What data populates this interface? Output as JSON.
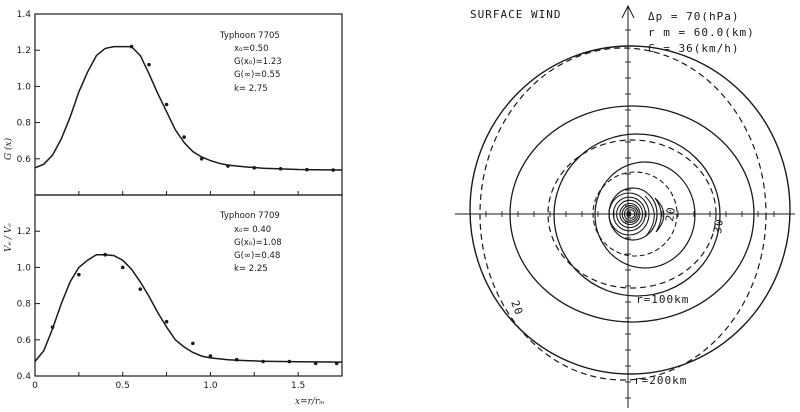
{
  "chart_data": [
    {
      "type": "line",
      "panel": "top",
      "title": "Typhoon 7705",
      "annotations": [
        "x₀=0.50",
        "G(x₀)=1.23",
        "G(∞)=0.55",
        "k= 2.75"
      ],
      "ylabel": "G (x)",
      "xlim": [
        0,
        1.75
      ],
      "ylim": [
        0.4,
        1.4
      ],
      "yticks": [
        "0.6",
        "0.8",
        "1.0",
        "1.2",
        "1.4"
      ],
      "curve": {
        "x": [
          0,
          0.05,
          0.1,
          0.15,
          0.2,
          0.25,
          0.3,
          0.35,
          0.4,
          0.45,
          0.5,
          0.55,
          0.6,
          0.65,
          0.7,
          0.75,
          0.8,
          0.85,
          0.9,
          0.95,
          1.0,
          1.05,
          1.1,
          1.2,
          1.3,
          1.4,
          1.5,
          1.6,
          1.75
        ],
        "y": [
          0.55,
          0.57,
          0.62,
          0.71,
          0.83,
          0.97,
          1.08,
          1.17,
          1.21,
          1.22,
          1.22,
          1.22,
          1.17,
          1.07,
          0.96,
          0.86,
          0.76,
          0.69,
          0.64,
          0.61,
          0.59,
          0.575,
          0.565,
          0.555,
          0.548,
          0.544,
          0.541,
          0.54,
          0.538
        ]
      },
      "points": {
        "x": [
          0.55,
          0.65,
          0.75,
          0.85,
          0.95,
          1.1,
          1.25,
          1.4,
          1.55,
          1.7
        ],
        "y": [
          1.22,
          1.12,
          0.9,
          0.72,
          0.6,
          0.56,
          0.55,
          0.545,
          0.54,
          0.538
        ]
      }
    },
    {
      "type": "line",
      "panel": "bottom",
      "title": "Typhoon 7709",
      "annotations": [
        "x₀= 0.40",
        "G(x₀)=1.08",
        "G(∞)=0.48",
        "k= 2.25"
      ],
      "ylabel": "Vₑ / Vₒ",
      "xlabel": "x=r/rₘ",
      "xlim": [
        0,
        1.75
      ],
      "ylim": [
        0.4,
        1.4
      ],
      "xticks": [
        "0",
        "0.5",
        "1.0",
        "1.5"
      ],
      "yticks": [
        "0.4",
        "0.6",
        "0.8",
        "1.0",
        "1.2"
      ],
      "curve": {
        "x": [
          0,
          0.05,
          0.1,
          0.15,
          0.2,
          0.25,
          0.3,
          0.35,
          0.4,
          0.45,
          0.5,
          0.55,
          0.6,
          0.65,
          0.7,
          0.75,
          0.8,
          0.85,
          0.9,
          0.95,
          1.0,
          1.1,
          1.2,
          1.3,
          1.4,
          1.5,
          1.6,
          1.75
        ],
        "y": [
          0.48,
          0.54,
          0.66,
          0.8,
          0.92,
          1.0,
          1.04,
          1.07,
          1.07,
          1.065,
          1.04,
          0.99,
          0.92,
          0.84,
          0.75,
          0.67,
          0.6,
          0.56,
          0.53,
          0.51,
          0.5,
          0.49,
          0.485,
          0.482,
          0.48,
          0.479,
          0.478,
          0.477
        ]
      },
      "points": {
        "x": [
          0.1,
          0.25,
          0.4,
          0.5,
          0.6,
          0.75,
          0.9,
          1.0,
          1.15,
          1.3,
          1.45,
          1.6,
          1.72
        ],
        "y": [
          0.67,
          0.96,
          1.07,
          1.0,
          0.88,
          0.7,
          0.58,
          0.51,
          0.49,
          0.48,
          0.48,
          0.47,
          0.47
        ]
      }
    }
  ],
  "wind_panel": {
    "title": "SURFACE WIND",
    "params": [
      "Δp = 70(hPa)",
      "r m = 60.0(km)",
      "C = 36(km/h)"
    ],
    "ring_labels": [
      "r=100km",
      "r=200km"
    ],
    "contour_labels": [
      "20",
      "30",
      "20"
    ]
  }
}
